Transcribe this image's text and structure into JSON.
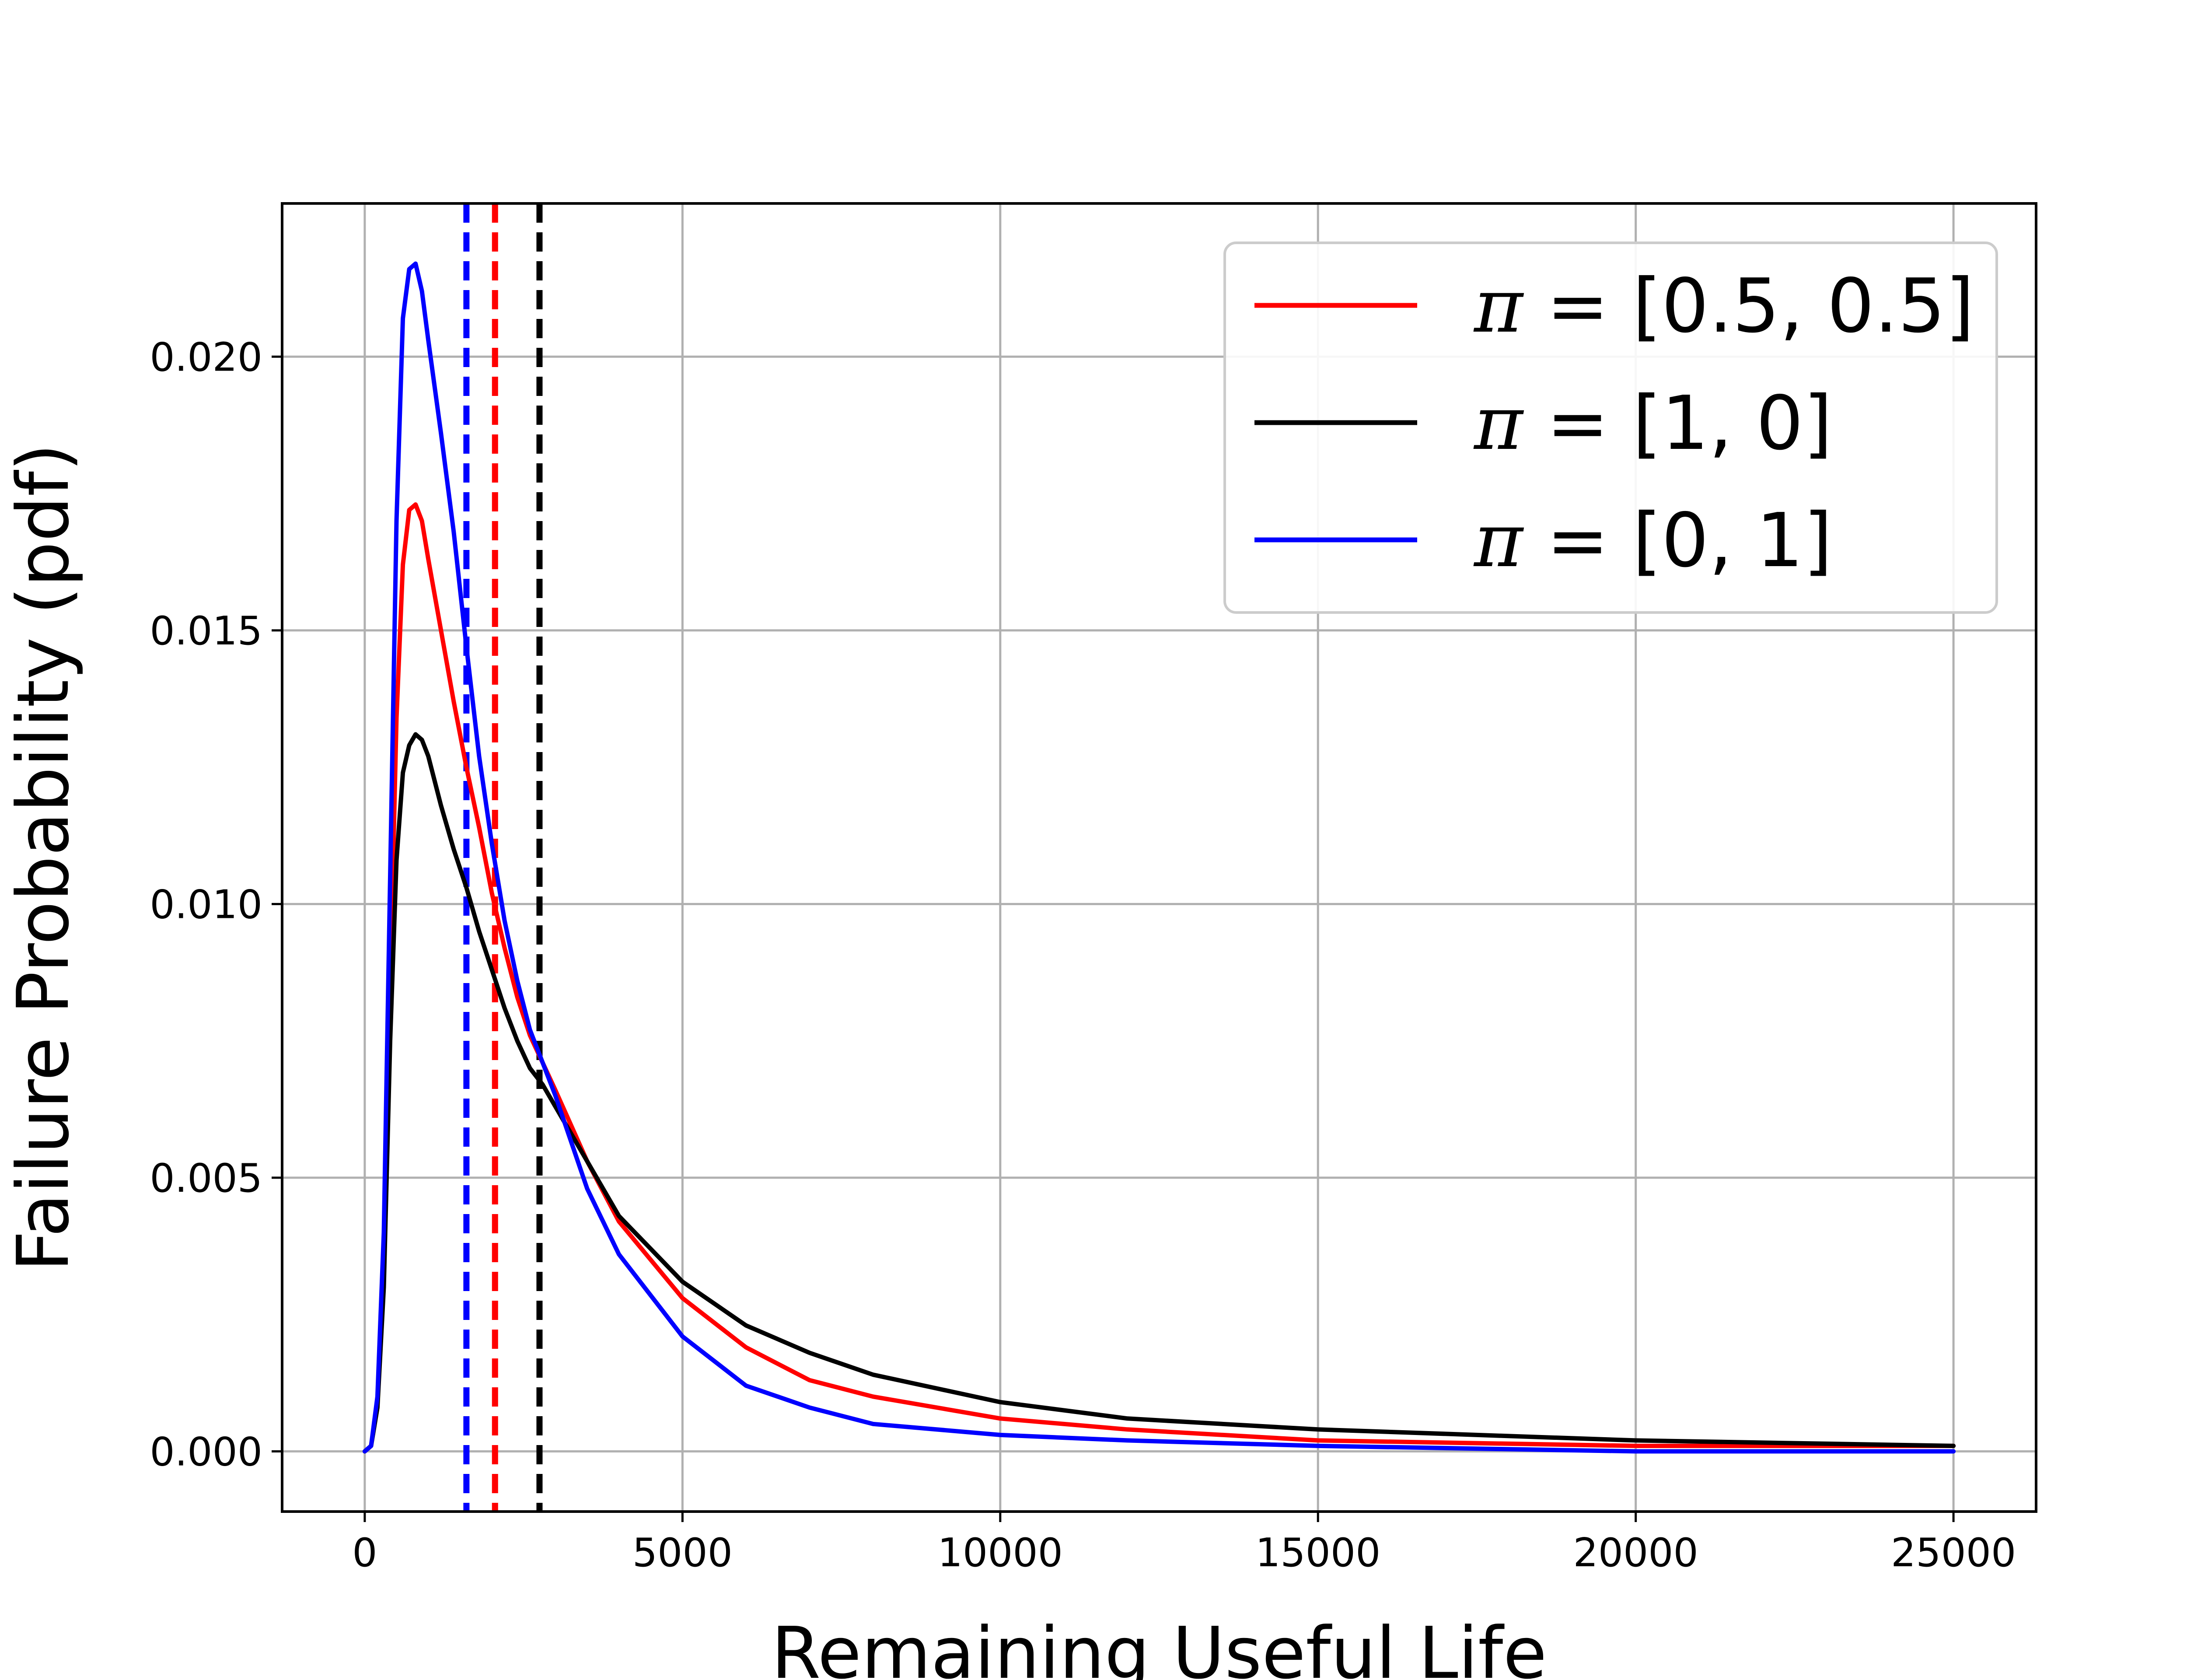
{
  "chart_data": {
    "type": "line",
    "title": "",
    "xlabel": "Remaining Useful Life",
    "ylabel": "Failure Probability (pdf)",
    "xlim": [
      -1300,
      26300
    ],
    "ylim": [
      -0.0011,
      0.0228
    ],
    "x_ticks": [
      0,
      5000,
      10000,
      15000,
      20000,
      25000
    ],
    "x_tick_labels": [
      "0",
      "5000",
      "10000",
      "15000",
      "20000",
      "25000"
    ],
    "y_ticks": [
      0.0,
      0.005,
      0.01,
      0.015,
      0.02
    ],
    "y_tick_labels": [
      "0.000",
      "0.005",
      "0.010",
      "0.015",
      "0.020"
    ],
    "grid": true,
    "legend_position": "top-right",
    "series": [
      {
        "name": "π = [0.5, 0.5]",
        "legend_prefix": "π",
        "legend_suffix": " = [0.5, 0.5]",
        "color": "#ff0000",
        "x": [
          0,
          100,
          200,
          300,
          400,
          500,
          600,
          700,
          800,
          900,
          1000,
          1200,
          1400,
          1600,
          1800,
          2000,
          2200,
          2400,
          2600,
          2800,
          3000,
          3500,
          4000,
          5000,
          6000,
          7000,
          8000,
          10000,
          12000,
          15000,
          20000,
          25000
        ],
        "y": [
          0.0,
          0.0001,
          0.0009,
          0.0035,
          0.0085,
          0.0134,
          0.0162,
          0.0172,
          0.0173,
          0.017,
          0.0163,
          0.015,
          0.0137,
          0.0125,
          0.0114,
          0.0102,
          0.0092,
          0.0083,
          0.0076,
          0.0071,
          0.0066,
          0.0053,
          0.0042,
          0.0028,
          0.0019,
          0.0013,
          0.001,
          0.0006,
          0.0004,
          0.0002,
          0.0001,
          0.0001
        ]
      },
      {
        "name": "π = [1, 0]",
        "legend_prefix": "π",
        "legend_suffix": " = [1, 0]",
        "color": "#000000",
        "x": [
          0,
          100,
          200,
          300,
          400,
          500,
          600,
          700,
          800,
          900,
          1000,
          1200,
          1400,
          1600,
          1800,
          2000,
          2200,
          2400,
          2600,
          2800,
          3000,
          3500,
          4000,
          5000,
          6000,
          7000,
          8000,
          10000,
          12000,
          15000,
          20000,
          25000
        ],
        "y": [
          0.0,
          0.0001,
          0.0008,
          0.003,
          0.0075,
          0.0108,
          0.0124,
          0.0129,
          0.0131,
          0.013,
          0.0127,
          0.0118,
          0.011,
          0.0103,
          0.0095,
          0.0088,
          0.0081,
          0.0075,
          0.007,
          0.0067,
          0.0063,
          0.0053,
          0.0043,
          0.0031,
          0.0023,
          0.0018,
          0.0014,
          0.0009,
          0.0006,
          0.0004,
          0.0002,
          0.0001
        ]
      },
      {
        "name": "π = [0, 1]",
        "legend_prefix": "π",
        "legend_suffix": " = [0, 1]",
        "color": "#0000ff",
        "x": [
          0,
          100,
          200,
          300,
          400,
          500,
          600,
          700,
          800,
          900,
          1000,
          1200,
          1400,
          1600,
          1800,
          2000,
          2200,
          2400,
          2600,
          2800,
          3000,
          3500,
          4000,
          5000,
          6000,
          7000,
          8000,
          10000,
          12000,
          15000,
          20000,
          25000
        ],
        "y": [
          0.0,
          0.0001,
          0.001,
          0.004,
          0.0105,
          0.017,
          0.0207,
          0.0216,
          0.0217,
          0.0212,
          0.0203,
          0.0186,
          0.0168,
          0.0147,
          0.0127,
          0.0111,
          0.0097,
          0.0086,
          0.0077,
          0.0071,
          0.0065,
          0.0048,
          0.0036,
          0.0021,
          0.0012,
          0.0008,
          0.0005,
          0.0003,
          0.0002,
          0.0001,
          0.0,
          0.0
        ]
      }
    ],
    "vlines": [
      {
        "x": 1600,
        "color": "#0000ff",
        "style": "dashed"
      },
      {
        "x": 2050,
        "color": "#ff0000",
        "style": "dashed"
      },
      {
        "x": 2750,
        "color": "#000000",
        "style": "dashed"
      }
    ]
  }
}
